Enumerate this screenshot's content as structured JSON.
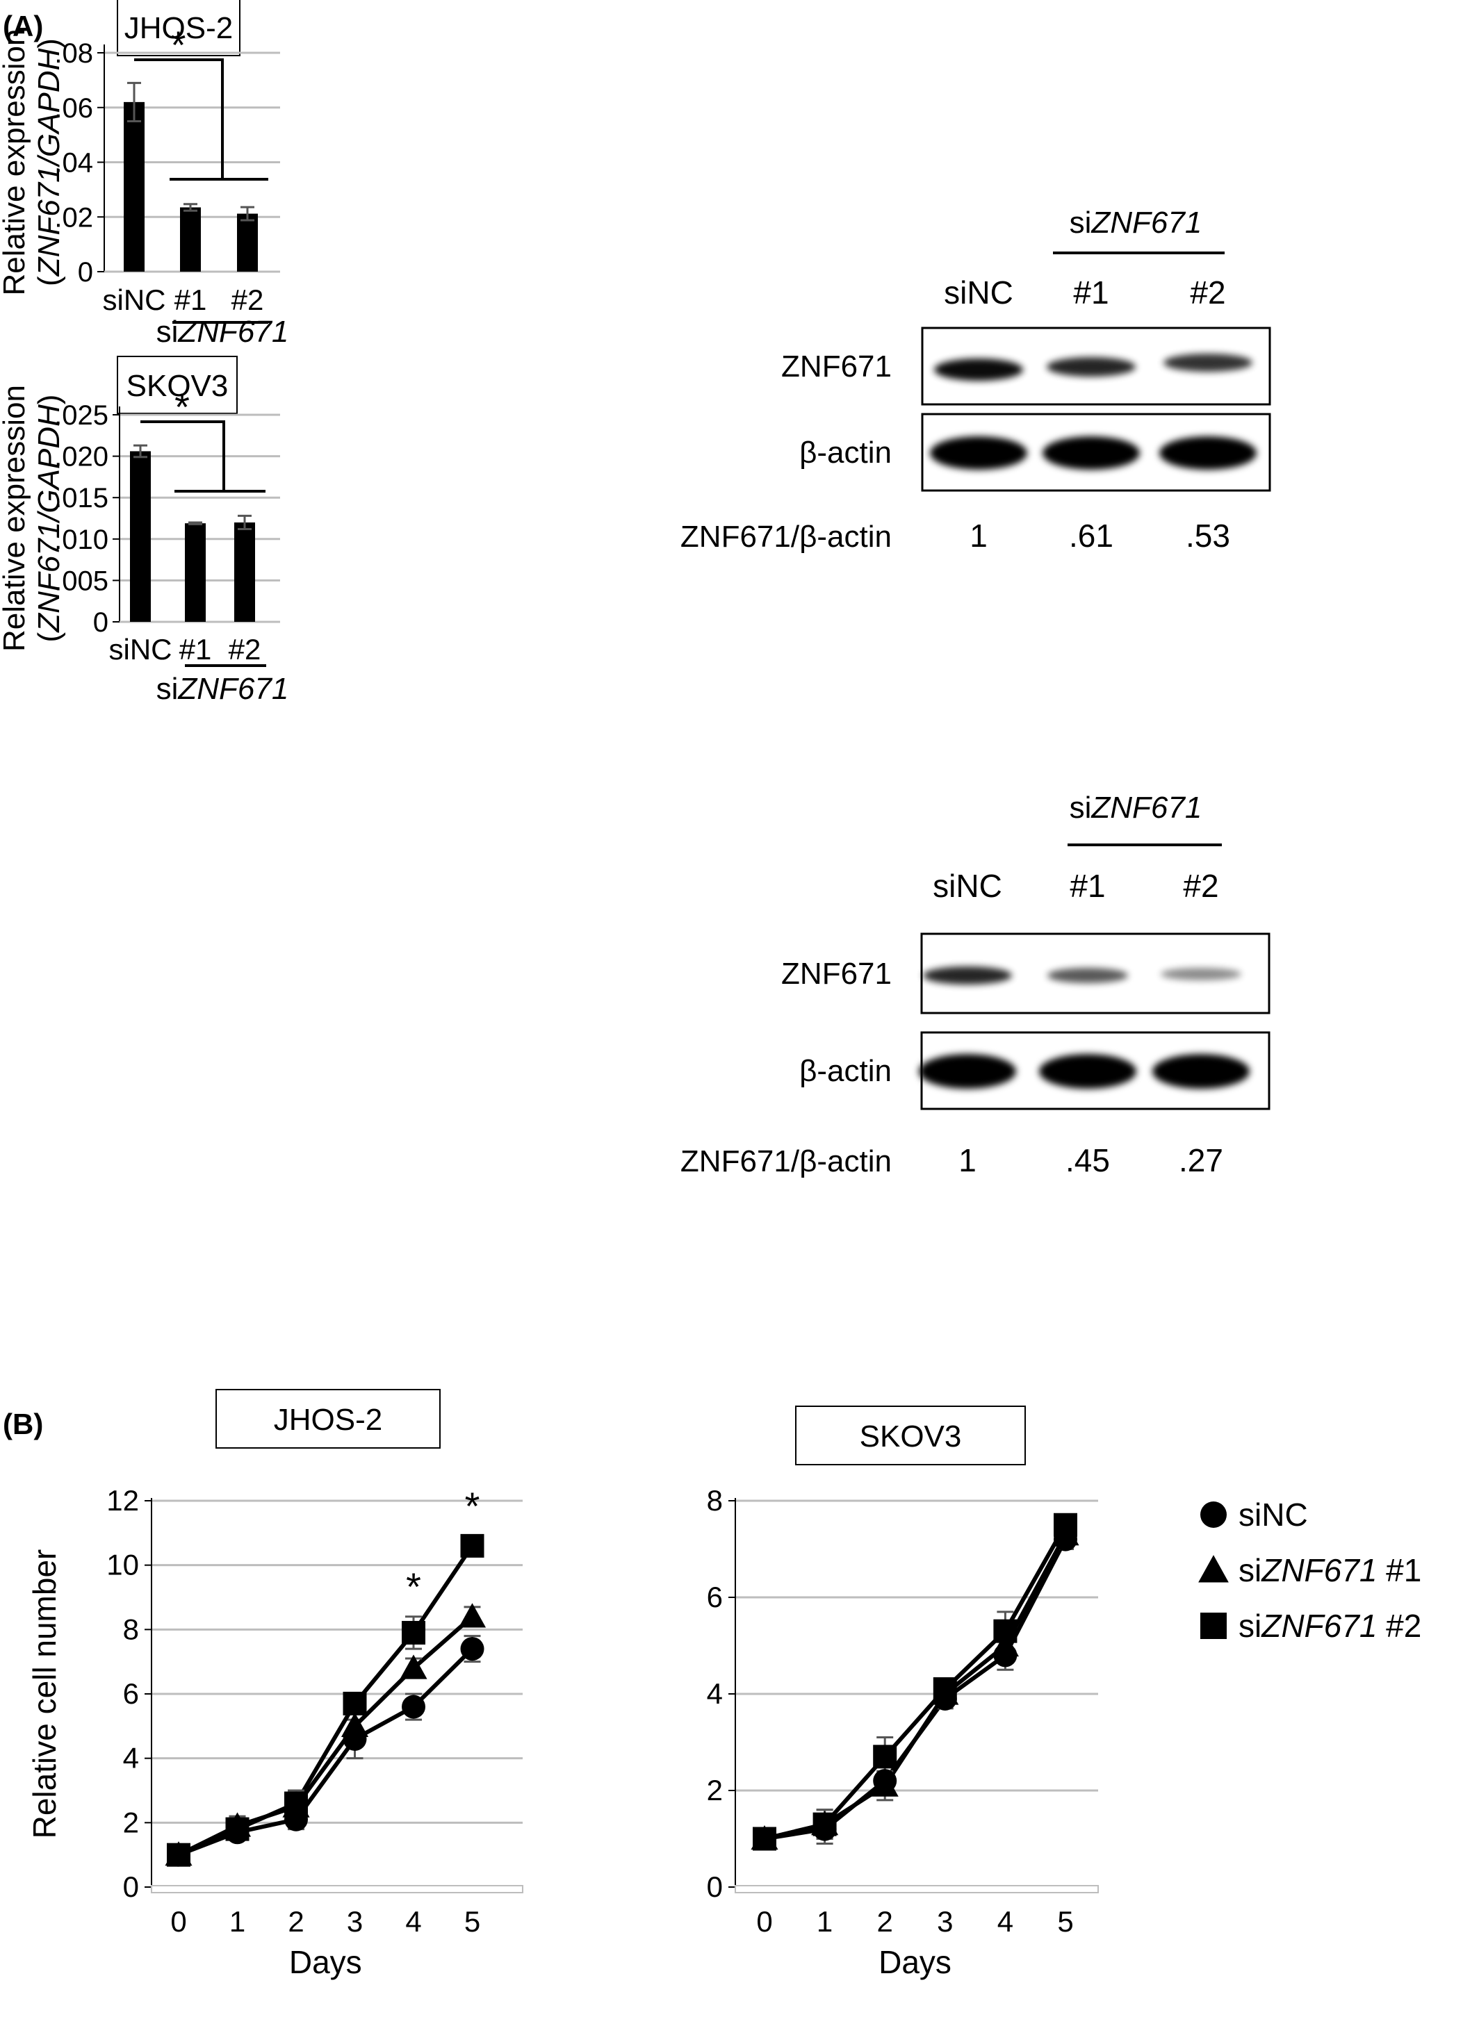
{
  "panel_labels": {
    "a": "(A)",
    "b": "(B)"
  },
  "chart_data": [
    {
      "id": "jhos2_expression",
      "type": "bar",
      "title": "JHOS-2",
      "ylabel_line1": "Relative expression",
      "ylabel_line2": "(ZNF671/GAPDH)",
      "ylabel_line2_parts": [
        "(",
        "ZNF671/GAPDH",
        ")"
      ],
      "categories": [
        "siNC",
        "#1",
        "#2"
      ],
      "group_label_prefix": "si",
      "group_label_gene": "ZNF671",
      "values": [
        0.062,
        0.0235,
        0.0212
      ],
      "errors": [
        0.007,
        0.0012,
        0.0024
      ],
      "ylim": [
        0,
        0.08
      ],
      "yticks": [
        0,
        0.02,
        0.04,
        0.06,
        0.08
      ],
      "ytick_labels": [
        "0",
        ".02",
        ".04",
        ".06",
        ".08"
      ],
      "grid": true,
      "significance": "*"
    },
    {
      "id": "skov3_expression",
      "type": "bar",
      "title": "SKOV3",
      "ylabel_line1": "Relative expression",
      "ylabel_line2": "(ZNF671/GAPDH)",
      "ylabel_line2_parts": [
        "(",
        "ZNF671/GAPDH",
        ")"
      ],
      "categories": [
        "siNC",
        "#1",
        "#2"
      ],
      "group_label_prefix": "si",
      "group_label_gene": "ZNF671",
      "values": [
        0.0206,
        0.0119,
        0.012
      ],
      "errors": [
        0.0007,
        0.0001,
        0.0008
      ],
      "ylim": [
        0,
        0.025
      ],
      "yticks": [
        0,
        0.005,
        0.01,
        0.015,
        0.02,
        0.025
      ],
      "ytick_labels": [
        "0",
        ".005",
        ".010",
        ".015",
        ".020",
        ".025"
      ],
      "grid": true,
      "significance": "*"
    },
    {
      "id": "jhos2_growth",
      "type": "line",
      "title": "JHOS-2",
      "xlabel": "Days",
      "ylabel": "Relative cell number",
      "x": [
        0,
        1,
        2,
        3,
        4,
        5
      ],
      "ylim": [
        0,
        12
      ],
      "yticks": [
        0,
        2,
        4,
        6,
        8,
        10,
        12
      ],
      "grid": true,
      "series": [
        {
          "name": "siNC",
          "marker": "circle",
          "values": [
            1.0,
            1.7,
            2.1,
            4.6,
            5.6,
            7.4
          ],
          "errors": [
            0.1,
            0.2,
            0.3,
            0.6,
            0.4,
            0.4
          ]
        },
        {
          "name": "siZNF671 #1",
          "marker": "triangle",
          "values": [
            1.0,
            1.9,
            2.5,
            5.0,
            6.8,
            8.4
          ],
          "errors": [
            0.1,
            0.3,
            0.3,
            0.5,
            0.3,
            0.3
          ]
        },
        {
          "name": "siZNF671 #2",
          "marker": "square",
          "values": [
            1.0,
            1.8,
            2.6,
            5.7,
            7.9,
            10.6
          ],
          "errors": [
            0.1,
            0.3,
            0.4,
            0.3,
            0.5,
            0.3
          ]
        }
      ],
      "significance": [
        {
          "x": 4,
          "label": "*"
        },
        {
          "x": 5,
          "label": "*"
        }
      ]
    },
    {
      "id": "skov3_growth",
      "type": "line",
      "title": "SKOV3",
      "xlabel": "Days",
      "ylabel": "",
      "x": [
        0,
        1,
        2,
        3,
        4,
        5
      ],
      "ylim": [
        0,
        8
      ],
      "yticks": [
        0,
        2,
        4,
        6,
        8
      ],
      "grid": true,
      "legend_position": "right",
      "series": [
        {
          "name": "siNC",
          "marker": "circle",
          "values": [
            1.0,
            1.2,
            2.2,
            3.9,
            4.8,
            7.2
          ],
          "errors": [
            0.1,
            0.3,
            0.3,
            0.2,
            0.3,
            0.2
          ]
        },
        {
          "name": "siZNF671 #1",
          "marker": "triangle",
          "values": [
            1.0,
            1.3,
            2.1,
            4.0,
            5.0,
            7.3
          ],
          "errors": [
            0.1,
            0.3,
            0.3,
            0.2,
            0.3,
            0.2
          ]
        },
        {
          "name": "siZNF671 #2",
          "marker": "square",
          "values": [
            1.0,
            1.3,
            2.7,
            4.1,
            5.3,
            7.5
          ],
          "errors": [
            0.1,
            0.3,
            0.4,
            0.2,
            0.4,
            0.2
          ]
        }
      ]
    }
  ],
  "legend": {
    "entries": [
      {
        "marker": "circle",
        "prefix": "siNC",
        "gene": "",
        "suffix": ""
      },
      {
        "marker": "triangle",
        "prefix": "si",
        "gene": "ZNF671",
        "suffix": " #1"
      },
      {
        "marker": "square",
        "prefix": "si",
        "gene": "ZNF671",
        "suffix": " #2"
      }
    ]
  },
  "blots": [
    {
      "id": "jhos2_blot",
      "group_prefix": "si",
      "group_gene": "ZNF671",
      "lanes": [
        "siNC",
        "#1",
        "#2"
      ],
      "rows": [
        "ZNF671",
        "β-actin"
      ],
      "ratio_label": "ZNF671/β-actin",
      "ratios": [
        "1",
        ".61",
        ".53"
      ]
    },
    {
      "id": "skov3_blot",
      "group_prefix": "si",
      "group_gene": "ZNF671",
      "lanes": [
        "siNC",
        "#1",
        "#2"
      ],
      "rows": [
        "ZNF671",
        "β-actin"
      ],
      "ratio_label": "ZNF671/β-actin",
      "ratios": [
        "1",
        ".45",
        ".27"
      ]
    }
  ]
}
